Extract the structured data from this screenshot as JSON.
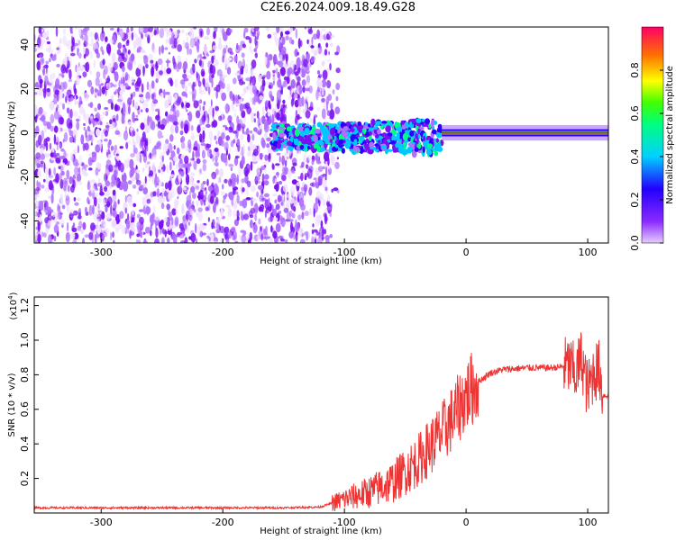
{
  "title": "C2E6.2024.009.18.49.G28",
  "colors": {
    "snr_line": "#ee3333",
    "cmap": [
      "#ffffff",
      "#e6ccff",
      "#a040ff",
      "#6a00ee",
      "#2200ff",
      "#00c8ff",
      "#00ff80",
      "#40ff00",
      "#ffff00",
      "#ff8000",
      "#ff0040",
      "#ff0066"
    ]
  },
  "chart_data": [
    {
      "type": "heatmap",
      "xlabel": "Height of straight line (km)",
      "ylabel": "Frequency (Hz)",
      "xlim": [
        -355,
        117
      ],
      "ylim": [
        -50,
        48
      ],
      "xticks": [
        -300,
        -200,
        -100,
        0,
        100
      ],
      "yticks": [
        -40,
        -20,
        0,
        20,
        40
      ],
      "colorbar": {
        "label": "Normalized spectral amplitude",
        "range": [
          0.0,
          1.0
        ],
        "ticks": [
          "0.0",
          "0.2",
          "0.4",
          "0.6",
          "0.8"
        ]
      },
      "regions": [
        {
          "x_range": [
            -355,
            -110
          ],
          "freq_range": [
            -50,
            48
          ],
          "amplitude": "0.05-0.25 (noise)"
        },
        {
          "x_range": [
            -160,
            -20
          ],
          "freq_range": [
            -15,
            8
          ],
          "amplitude": "0.2-0.5"
        },
        {
          "x_range": [
            -20,
            117
          ],
          "freq_range": [
            -2,
            2
          ],
          "amplitude": "0.85-1.0 (peak line at 0 Hz)"
        }
      ]
    },
    {
      "type": "line",
      "xlabel": "Height of straight line (km)",
      "ylabel": "SNR (10 * v/v)",
      "y_scale_label": "(x10",
      "y_scale_exp": "4",
      "xlim": [
        -355,
        117
      ],
      "ylim": [
        0,
        1.25
      ],
      "xticks": [
        -300,
        -200,
        -100,
        0,
        100
      ],
      "yticks": [
        "0.2",
        "0.4",
        "0.6",
        "0.8",
        "1.0",
        "1.2"
      ],
      "series": [
        {
          "x": [
            -355,
            -300,
            -250,
            -200,
            -150,
            -120,
            -100,
            -80,
            -60,
            -40,
            -30,
            -20,
            -10,
            0,
            10,
            20,
            30,
            50,
            70,
            85,
            90,
            95,
            100,
            105,
            110,
            112,
            117
          ],
          "y": [
            0.03,
            0.03,
            0.03,
            0.03,
            0.03,
            0.035,
            0.08,
            0.12,
            0.18,
            0.3,
            0.38,
            0.46,
            0.56,
            0.68,
            0.76,
            0.81,
            0.83,
            0.84,
            0.84,
            0.85,
            0.8,
            0.9,
            0.7,
            0.82,
            0.83,
            0.68,
            0.68
          ]
        }
      ]
    }
  ]
}
